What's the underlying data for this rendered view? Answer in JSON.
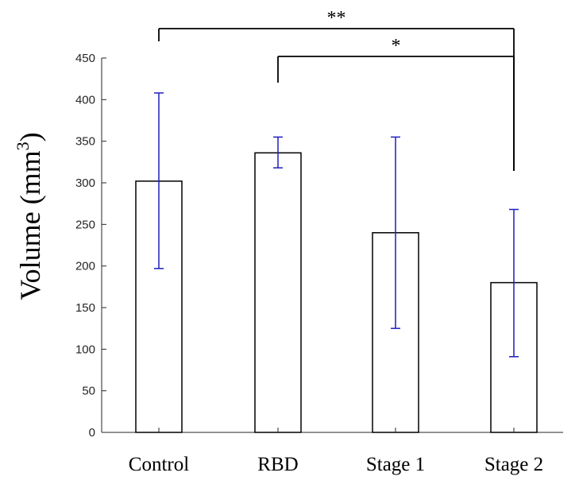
{
  "chart_data": {
    "type": "bar",
    "title": "",
    "xlabel": "",
    "ylabel": "Volume (mm",
    "ylabel_sup": "3",
    "ylabel_close": ")",
    "categories": [
      "Control",
      "RBD",
      "Stage 1",
      "Stage 2"
    ],
    "values": [
      302,
      336,
      240,
      180
    ],
    "error_low": [
      197,
      318,
      125,
      91
    ],
    "error_high": [
      408,
      355,
      355,
      268
    ],
    "ylim": [
      0,
      450
    ],
    "yticks": [
      0,
      50,
      100,
      150,
      200,
      250,
      300,
      350,
      400,
      450
    ],
    "grid": false,
    "colors": {
      "bar_fill": "#ffffff",
      "bar_edge": "#000000",
      "error_bar": "#1f1fbf",
      "axis": "#262626"
    },
    "significance": [
      {
        "from": "Control",
        "to": "Stage 2",
        "label": "**"
      },
      {
        "from": "RBD",
        "to": "Stage 2",
        "label": "*"
      }
    ]
  }
}
